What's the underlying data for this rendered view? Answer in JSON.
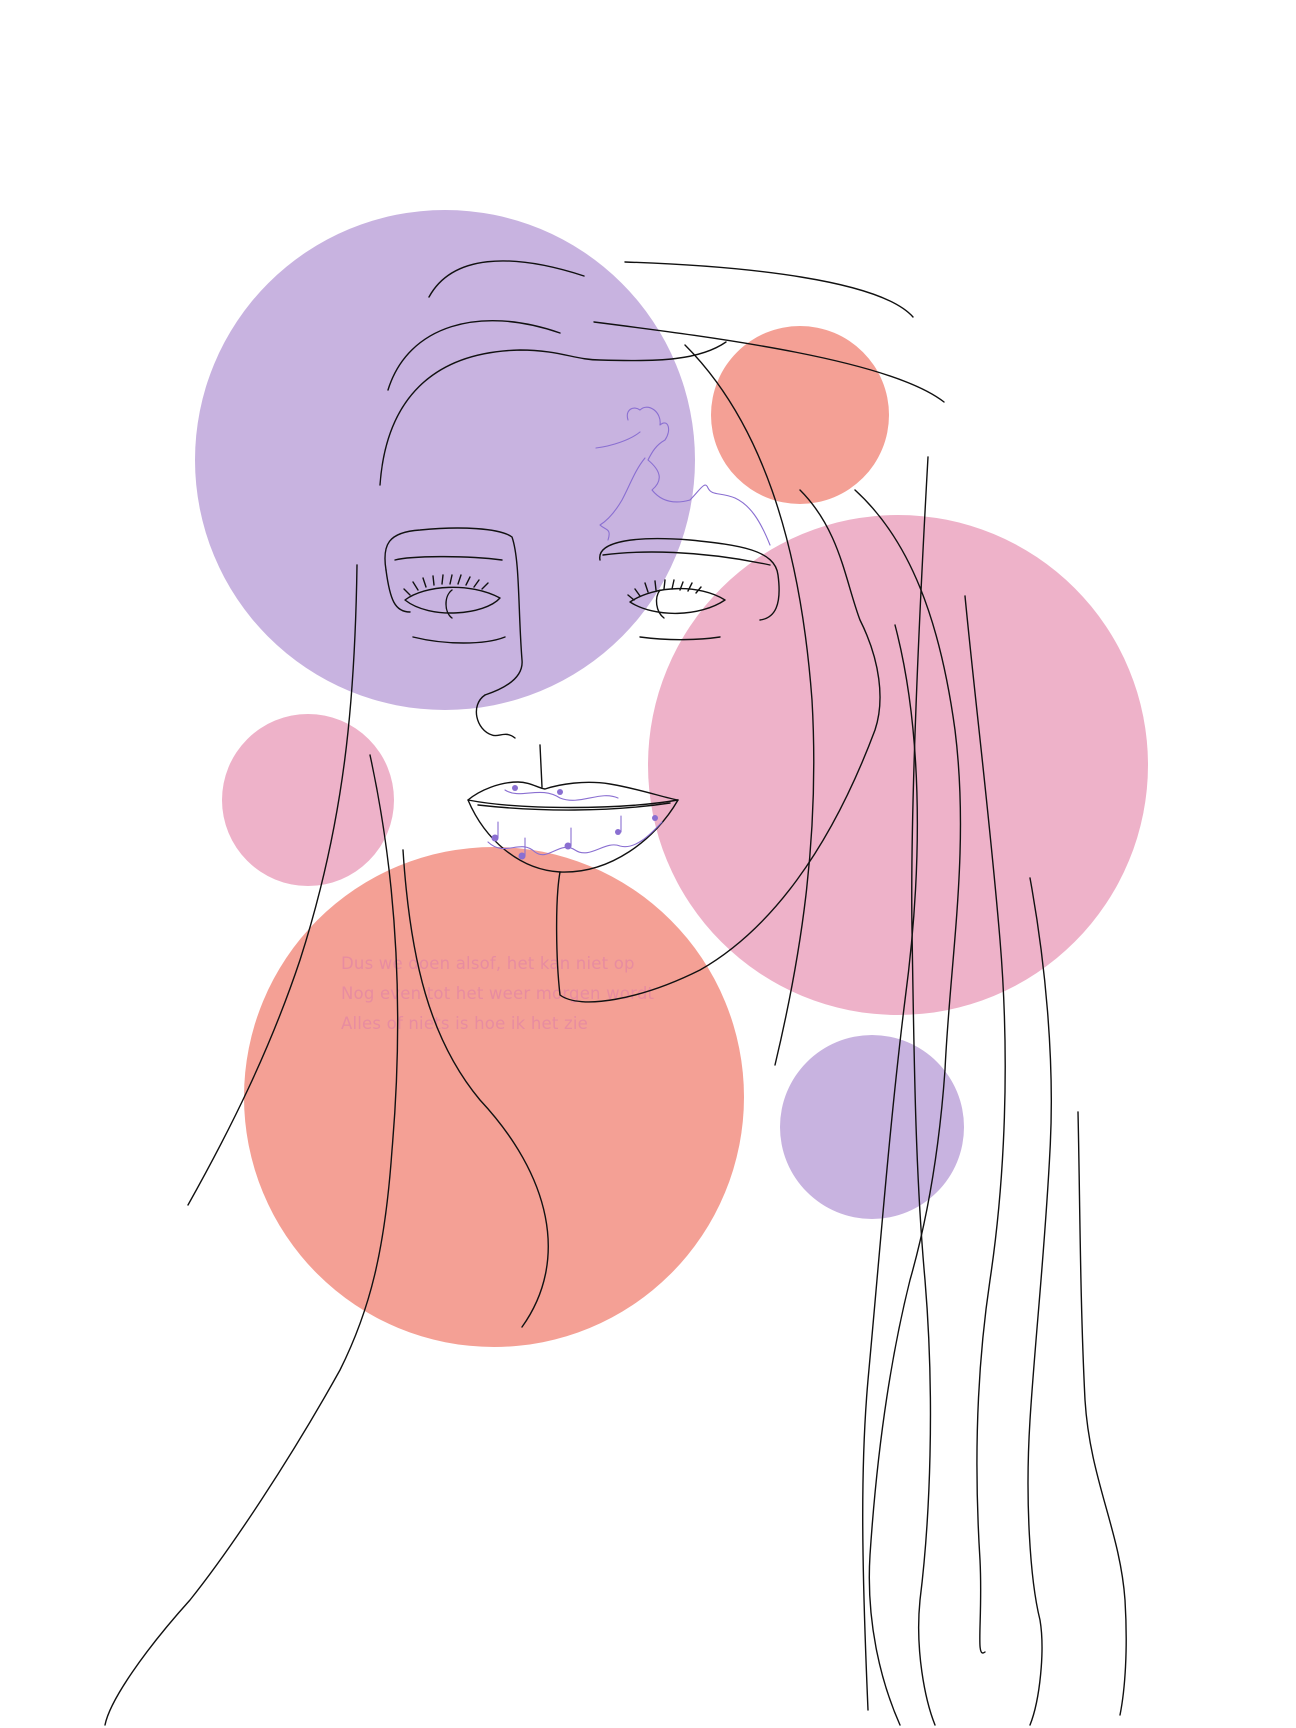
{
  "colors": {
    "background": "#ffffff",
    "lavender": "#c8b3e0",
    "coral": "#f4a095",
    "pink": "#eeb2c9",
    "line": "#111111",
    "accent_line": "#8a6fd1",
    "lyric_text": "#e88ca0"
  },
  "lyrics": [
    "Dus we doen alsof, het kan niet op",
    "Nog even tot het weer morgen wordt",
    "Alles of niets is hoe ik het zie"
  ],
  "icons": {
    "runner": "running-woman-line-drawing",
    "notes": "music-notes-in-lips"
  }
}
